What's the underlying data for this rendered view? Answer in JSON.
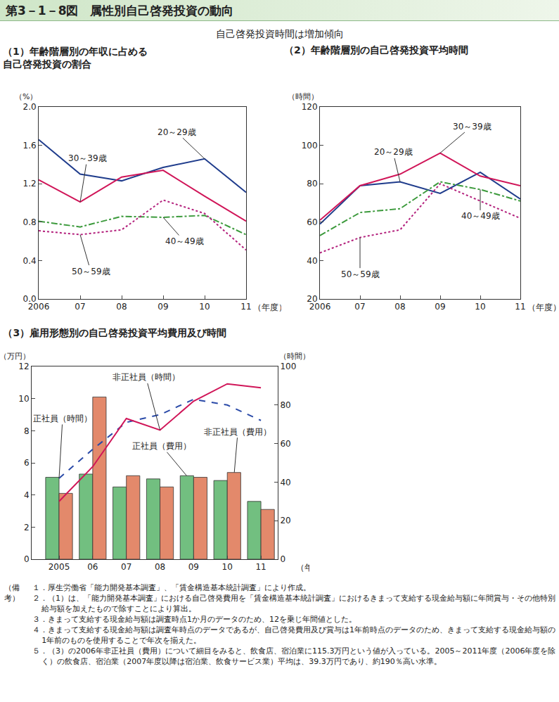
{
  "header": {
    "title": "第3－1－8図　属性別自己啓発投資の動向",
    "subtitle": "自己啓発投資時間は増加傾向"
  },
  "chart_data": [
    {
      "type": "line",
      "title": "（1）年齢階層別の年収に占める\n自己啓発投資の割合",
      "y_label": "（%）",
      "x_label": "（年度）",
      "categories": [
        "2006",
        "07",
        "08",
        "09",
        "10",
        "11"
      ],
      "ylim": [
        0,
        2.0
      ],
      "yticks": [
        {
          "value": 0,
          "label": "0.0"
        },
        0.4,
        0.8,
        1.2,
        1.6,
        {
          "value": 2.0,
          "label": "2.0"
        }
      ],
      "grid": false,
      "series": [
        {
          "name": "20～29歳",
          "color": "#1f3c8c",
          "line_style": "solid",
          "values": [
            1.66,
            1.3,
            1.23,
            1.37,
            1.46,
            1.11
          ]
        },
        {
          "name": "30～39歳",
          "color": "#d01558",
          "line_style": "solid",
          "values": [
            1.24,
            1.01,
            1.27,
            1.34,
            1.07,
            0.81
          ]
        },
        {
          "name": "40～49歳",
          "color": "#3c9a3c",
          "line_style": "dashdot",
          "values": [
            0.81,
            0.75,
            0.86,
            0.85,
            0.87,
            0.67
          ]
        },
        {
          "name": "50～59歳",
          "color": "#b3207c",
          "line_style": "dot",
          "values": [
            0.71,
            0.67,
            0.72,
            1.03,
            0.89,
            0.51
          ]
        }
      ]
    },
    {
      "type": "line",
      "title": "（2）年齢階層別の自己啓発投資平均時間",
      "y_label": "（時間）",
      "x_label": "（年度）",
      "categories": [
        "2006",
        "07",
        "08",
        "09",
        "10",
        "11"
      ],
      "ylim": [
        20,
        120
      ],
      "yticks": [
        20,
        40,
        60,
        80,
        100,
        120
      ],
      "grid": false,
      "series": [
        {
          "name": "20～29歳",
          "color": "#1f3c8c",
          "line_style": "solid",
          "values": [
            59,
            79,
            81,
            75,
            86,
            72
          ]
        },
        {
          "name": "30～39歳",
          "color": "#d01558",
          "line_style": "solid",
          "values": [
            61,
            79,
            85,
            96,
            84,
            79
          ]
        },
        {
          "name": "40～49歳",
          "color": "#3c9a3c",
          "line_style": "dashdot",
          "values": [
            53,
            65,
            67,
            81,
            77,
            71
          ]
        },
        {
          "name": "50～59歳",
          "color": "#b3207c",
          "line_style": "dot",
          "values": [
            44,
            52,
            56,
            80,
            71,
            62
          ]
        }
      ]
    },
    {
      "type": "bar",
      "title": "（3）雇用形態別の自己啓発投資平均費用及び時間",
      "y_label": "（万円）",
      "y2_label": "（時間）",
      "x_label": "（年度）",
      "categories": [
        "2005",
        "06",
        "07",
        "08",
        "09",
        "10",
        "11"
      ],
      "ylim": [
        0,
        12
      ],
      "yticks": [
        0,
        2,
        4,
        6,
        8,
        10,
        12
      ],
      "y2lim": [
        0,
        100
      ],
      "y2ticks": [
        0,
        20,
        40,
        60,
        80,
        100
      ],
      "grid": false,
      "series": [
        {
          "name": "正社員（費用）",
          "type": "bar",
          "color": "#72bf80",
          "values": [
            5.1,
            5.3,
            4.5,
            5.0,
            5.2,
            4.9,
            3.6
          ]
        },
        {
          "name": "非正社員（費用）",
          "type": "bar",
          "color": "#e3896b",
          "values": [
            4.1,
            10.1,
            5.2,
            4.5,
            5.1,
            5.4,
            3.1
          ]
        },
        {
          "name": "正社員（時間）",
          "type": "line",
          "axis": "y2",
          "color": "#2a4aa8",
          "line_style": "dash",
          "values": [
            42,
            57,
            71,
            75,
            83,
            80,
            72
          ]
        },
        {
          "name": "非正社員（時間）",
          "type": "line",
          "axis": "y2",
          "color": "#d01558",
          "line_style": "solid",
          "values": [
            30,
            48,
            73,
            67,
            82,
            91,
            89
          ]
        }
      ]
    }
  ],
  "notes": {
    "label": "（備考）",
    "items": [
      "１．厚生労働省「能力開発基本調査」、「賃金構造基本統計調査」により作成。",
      "２．（1）は、「能力開発基本調査」における自己啓発費用を「賃金構造基本統計調査」におけるきまって支給する現金給与額に年間賞与・その他特別給与額を加えたもので除すことにより算出。",
      "３．きまって支給する現金給与額は調査時点1か月のデータのため、12を乗じ年間値とした。",
      "４．きまって支給する現金給与額は調査年時点のデータであるが、自己啓発費用及び賞与は1年前時点のデータのため、きまって支給する現金給与額の1年前のものを使用することで年次を揃えた。",
      "５．（3）の2006年非正社員（費用）について細目をみると、飲食店、宿泊業に115.3万円という値が入っている。2005～2011年度（2006年度を除く）の飲食店、宿泊業（2007年度以降は宿泊業、飲食サービス業）平均は、39.3万円であり、約190％高い水準。"
    ]
  }
}
